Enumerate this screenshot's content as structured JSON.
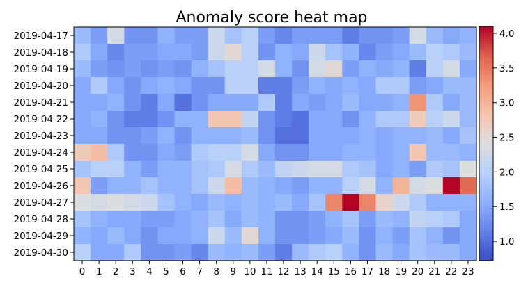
{
  "chart_data": {
    "type": "heatmap",
    "title": "Anomaly score heat map",
    "xlabel": "",
    "ylabel": "",
    "x_categories": [
      "0",
      "1",
      "2",
      "3",
      "4",
      "5",
      "6",
      "7",
      "8",
      "9",
      "10",
      "11",
      "12",
      "13",
      "14",
      "15",
      "16",
      "17",
      "18",
      "19",
      "20",
      "21",
      "22",
      "23"
    ],
    "y_categories": [
      "2019-04-17",
      "2019-04-18",
      "2019-04-19",
      "2019-04-20",
      "2019-04-21",
      "2019-04-22",
      "2019-04-23",
      "2019-04-24",
      "2019-04-25",
      "2019-04-26",
      "2019-04-27",
      "2019-04-28",
      "2019-04-29",
      "2019-04-30"
    ],
    "y_label_colors": [
      "#000000",
      "#000000",
      "#000000",
      "#000000",
      "#000000",
      "#000000",
      "#000000",
      "#000000",
      "#ff0000",
      "#ff0000",
      "#ff0000",
      "#000000",
      "#000000",
      "#000000"
    ],
    "values": [
      [
        1.7,
        1.4,
        2.3,
        1.3,
        1.3,
        1.6,
        1.4,
        1.4,
        2.2,
        1.8,
        2.0,
        1.4,
        1.2,
        1.4,
        1.4,
        1.4,
        1.1,
        1.3,
        1.3,
        1.4,
        2.3,
        1.7,
        1.5,
        1.6
      ],
      [
        1.9,
        1.5,
        1.2,
        1.4,
        1.4,
        1.5,
        1.5,
        1.4,
        2.2,
        2.5,
        2.0,
        1.3,
        1.6,
        1.5,
        2.2,
        1.8,
        1.6,
        1.2,
        1.4,
        1.5,
        1.7,
        2.0,
        1.9,
        1.7
      ],
      [
        1.7,
        1.4,
        1.3,
        1.4,
        1.3,
        1.4,
        1.3,
        1.6,
        1.8,
        2.0,
        2.0,
        2.3,
        1.6,
        1.3,
        2.3,
        2.5,
        1.4,
        1.6,
        1.5,
        1.6,
        1.1,
        2.0,
        2.3,
        1.5
      ],
      [
        1.5,
        1.9,
        1.5,
        1.3,
        1.5,
        1.6,
        1.5,
        1.3,
        1.3,
        2.0,
        2.0,
        1.1,
        1.1,
        1.4,
        1.6,
        1.5,
        1.6,
        1.5,
        1.9,
        1.9,
        1.4,
        1.5,
        1.7,
        1.7
      ],
      [
        1.5,
        1.5,
        1.6,
        1.3,
        1.1,
        1.5,
        1.0,
        1.3,
        1.5,
        1.5,
        1.5,
        1.9,
        1.1,
        1.5,
        1.4,
        1.5,
        1.7,
        1.5,
        1.5,
        1.6,
        3.3,
        1.9,
        1.5,
        1.7
      ],
      [
        1.5,
        1.6,
        1.3,
        1.1,
        1.1,
        1.3,
        1.6,
        1.6,
        2.8,
        2.8,
        2.1,
        1.3,
        1.1,
        1.0,
        1.5,
        1.5,
        1.3,
        1.6,
        1.9,
        1.9,
        2.7,
        2.0,
        2.2,
        1.7
      ],
      [
        1.5,
        1.5,
        1.3,
        1.3,
        1.4,
        1.6,
        1.3,
        1.6,
        1.6,
        1.6,
        1.7,
        1.3,
        1.0,
        1.0,
        1.5,
        1.5,
        1.5,
        1.6,
        1.5,
        1.6,
        1.6,
        1.7,
        1.5,
        1.8
      ],
      [
        2.7,
        2.9,
        1.9,
        1.3,
        1.3,
        1.5,
        1.4,
        1.9,
        2.0,
        2.0,
        2.3,
        1.5,
        1.3,
        1.3,
        1.5,
        1.5,
        1.6,
        1.6,
        1.5,
        1.6,
        2.8,
        1.7,
        1.7,
        1.6
      ],
      [
        1.8,
        2.0,
        2.0,
        1.6,
        1.4,
        1.6,
        1.6,
        1.8,
        1.9,
        2.3,
        1.9,
        1.7,
        2.1,
        2.2,
        2.3,
        2.3,
        1.9,
        1.8,
        1.5,
        1.6,
        1.4,
        1.9,
        1.8,
        2.4
      ],
      [
        2.8,
        1.4,
        1.6,
        1.6,
        1.8,
        1.6,
        1.6,
        1.8,
        2.2,
        2.9,
        1.7,
        1.6,
        1.5,
        1.4,
        1.6,
        1.6,
        2.0,
        2.3,
        1.6,
        3.0,
        2.3,
        2.4,
        4.1,
        3.6
      ],
      [
        2.4,
        2.3,
        2.4,
        2.3,
        2.2,
        1.8,
        1.6,
        1.5,
        1.7,
        1.6,
        1.7,
        1.6,
        1.7,
        1.5,
        1.8,
        3.4,
        4.1,
        3.4,
        2.6,
        2.2,
        1.9,
        1.6,
        1.6,
        1.6
      ],
      [
        1.8,
        1.6,
        1.5,
        1.5,
        1.4,
        1.4,
        1.5,
        1.6,
        1.8,
        1.5,
        1.7,
        1.6,
        1.3,
        1.3,
        1.4,
        1.6,
        1.8,
        1.4,
        1.7,
        1.6,
        2.1,
        2.0,
        1.9,
        1.5
      ],
      [
        1.6,
        1.5,
        1.7,
        1.5,
        1.3,
        1.5,
        1.5,
        1.6,
        2.2,
        1.7,
        2.5,
        1.6,
        1.3,
        1.3,
        1.4,
        1.5,
        1.7,
        1.3,
        1.6,
        1.4,
        1.8,
        1.6,
        1.3,
        1.5
      ],
      [
        2.0,
        1.5,
        1.5,
        1.9,
        1.3,
        1.3,
        1.4,
        1.2,
        1.7,
        1.6,
        1.7,
        1.4,
        1.1,
        1.7,
        1.9,
        2.0,
        1.6,
        1.3,
        1.7,
        1.5,
        1.8,
        1.7,
        1.7,
        1.5
      ]
    ],
    "colormap": "coolwarm",
    "vmin": 0.72,
    "vmax": 4.1,
    "colorbar_ticks": [
      "1.0",
      "1.5",
      "2.0",
      "2.5",
      "3.0",
      "3.5",
      "4.0"
    ],
    "grid": false
  }
}
